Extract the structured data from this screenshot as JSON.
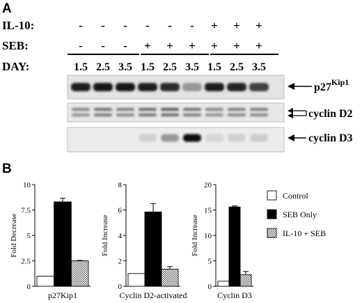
{
  "panel_a": {
    "label": "A",
    "row_labels": {
      "il10": "IL-10:",
      "seb": "SEB:",
      "day": "DAY:"
    },
    "il10": [
      "-",
      "-",
      "-",
      "-",
      "-",
      "-",
      "+",
      "+",
      "+"
    ],
    "seb": [
      "-",
      "-",
      "-",
      "+",
      "+",
      "+",
      "+",
      "+",
      "+"
    ],
    "days": [
      "1.5",
      "2.5",
      "3.5",
      "1.5",
      "2.5",
      "3.5",
      "1.5",
      "2.5",
      "3.5"
    ],
    "bands": {
      "p27": {
        "name": "p27",
        "superscript": "Kip1",
        "intensity": [
          0.92,
          0.95,
          0.95,
          0.92,
          0.85,
          0.35,
          0.92,
          0.9,
          0.75
        ]
      },
      "d2": {
        "name": "cyclin D2",
        "intensity": [
          0.45,
          0.55,
          0.5,
          0.6,
          0.65,
          0.55,
          0.45,
          0.5,
          0.5
        ]
      },
      "d3": {
        "name": "cyclin D3",
        "intensity": [
          0.0,
          0.0,
          0.0,
          0.08,
          0.35,
          0.97,
          0.05,
          0.08,
          0.1
        ]
      }
    }
  },
  "panel_b": {
    "label": "B"
  },
  "legend": [
    {
      "label": "Control",
      "fill": "white"
    },
    {
      "label": "SEB Only",
      "fill": "black"
    },
    {
      "label": "IL-10 + SEB",
      "fill": "dots"
    }
  ],
  "chart_data": [
    {
      "type": "bar",
      "xlabel": "p27Kip1",
      "ylabel": "Fold Decrease",
      "ylim": [
        0,
        10
      ],
      "yticks": [
        "0",
        "2.5",
        "5",
        "7.5",
        "10"
      ],
      "series": [
        {
          "name": "Control",
          "values": [
            1.0
          ]
        },
        {
          "name": "SEB Only",
          "values": [
            8.3
          ]
        },
        {
          "name": "IL-10 + SEB",
          "values": [
            2.5
          ]
        }
      ],
      "error": [
        0.0,
        0.35,
        0.05
      ]
    },
    {
      "type": "bar",
      "xlabel": "Cyclin D2-activated",
      "ylabel": "Fold Increase",
      "ylim": [
        0,
        8
      ],
      "yticks": [
        "0",
        "2",
        "4",
        "6",
        "8"
      ],
      "series": [
        {
          "name": "Control",
          "values": [
            1.0
          ]
        },
        {
          "name": "SEB Only",
          "values": [
            5.85
          ]
        },
        {
          "name": "IL-10 + SEB",
          "values": [
            1.35
          ]
        }
      ],
      "error": [
        0.0,
        0.65,
        0.2
      ]
    },
    {
      "type": "bar",
      "xlabel": "Cyclin D3",
      "ylabel": "Fold Increase",
      "ylim": [
        0,
        20
      ],
      "yticks": [
        "0",
        "5",
        "10",
        "15",
        "20"
      ],
      "series": [
        {
          "name": "Control",
          "values": [
            1.0
          ]
        },
        {
          "name": "SEB Only",
          "values": [
            15.6
          ]
        },
        {
          "name": "IL-10 + SEB",
          "values": [
            2.3
          ]
        }
      ],
      "error": [
        0.0,
        0.2,
        0.6
      ]
    }
  ]
}
